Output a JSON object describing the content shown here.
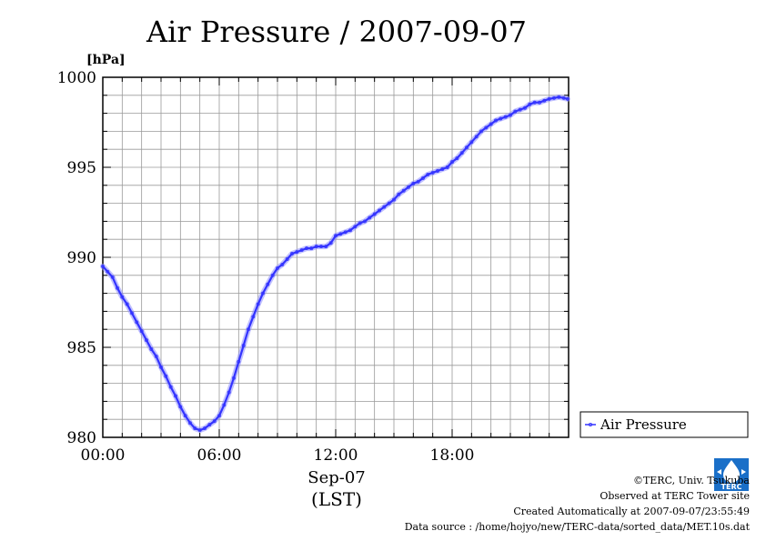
{
  "chart_data": {
    "type": "line",
    "title": "Air Pressure / 2007-09-07",
    "ylabel": "[hPa]",
    "xlabel": "(LST)",
    "date_label": "Sep-07",
    "x_unit": "hour (LST)",
    "xlim": [
      0,
      24
    ],
    "ylim": [
      980,
      1000
    ],
    "xticks": [
      0,
      6,
      12,
      18
    ],
    "xtick_labels": [
      "00:00",
      "06:00",
      "12:00",
      "18:00"
    ],
    "yticks": [
      980,
      985,
      990,
      995,
      1000
    ],
    "ytick_labels": [
      "980",
      "985",
      "990",
      "995",
      "1000"
    ],
    "grid": true,
    "legend_position": "right",
    "series": [
      {
        "name": "Air Pressure",
        "color": "#3333ff",
        "x": [
          0.0,
          0.25,
          0.5,
          0.75,
          1.0,
          1.25,
          1.5,
          1.75,
          2.0,
          2.25,
          2.5,
          2.75,
          3.0,
          3.25,
          3.5,
          3.75,
          4.0,
          4.25,
          4.5,
          4.75,
          5.0,
          5.25,
          5.5,
          5.75,
          6.0,
          6.25,
          6.5,
          6.75,
          7.0,
          7.25,
          7.5,
          7.75,
          8.0,
          8.25,
          8.5,
          8.75,
          9.0,
          9.25,
          9.5,
          9.75,
          10.0,
          10.25,
          10.5,
          10.75,
          11.0,
          11.25,
          11.5,
          11.75,
          12.0,
          12.25,
          12.5,
          12.75,
          13.0,
          13.25,
          13.5,
          13.75,
          14.0,
          14.25,
          14.5,
          14.75,
          15.0,
          15.25,
          15.5,
          15.75,
          16.0,
          16.25,
          16.5,
          16.75,
          17.0,
          17.25,
          17.5,
          17.75,
          18.0,
          18.25,
          18.5,
          18.75,
          19.0,
          19.25,
          19.5,
          19.75,
          20.0,
          20.25,
          20.5,
          20.75,
          21.0,
          21.25,
          21.5,
          21.75,
          22.0,
          22.25,
          22.5,
          22.75,
          23.0,
          23.25,
          23.5,
          23.75,
          23.95
        ],
        "y": [
          989.5,
          989.2,
          988.9,
          988.3,
          987.8,
          987.4,
          986.9,
          986.4,
          985.9,
          985.4,
          984.9,
          984.5,
          983.9,
          983.4,
          982.8,
          982.3,
          981.7,
          981.2,
          980.8,
          980.5,
          980.4,
          980.5,
          980.7,
          980.9,
          981.2,
          981.8,
          982.5,
          983.3,
          984.2,
          985.1,
          986.0,
          986.7,
          987.4,
          988.0,
          988.5,
          989.0,
          989.4,
          989.6,
          989.9,
          990.2,
          990.3,
          990.4,
          990.5,
          990.5,
          990.6,
          990.6,
          990.6,
          990.8,
          991.2,
          991.3,
          991.4,
          991.5,
          991.7,
          991.9,
          992.0,
          992.2,
          992.4,
          992.6,
          992.8,
          993.0,
          993.2,
          993.5,
          993.7,
          993.9,
          994.1,
          994.2,
          994.4,
          994.6,
          994.7,
          994.8,
          994.9,
          995.0,
          995.3,
          995.5,
          995.8,
          996.1,
          996.4,
          996.7,
          997.0,
          997.2,
          997.4,
          997.6,
          997.7,
          997.8,
          997.9,
          998.1,
          998.2,
          998.3,
          998.5,
          998.6,
          998.6,
          998.7,
          998.8,
          998.85,
          998.9,
          998.85,
          998.8
        ]
      }
    ]
  },
  "footer": {
    "copyright": "©TERC, Univ. Tsukuba",
    "observed": "Observed at TERC Tower site",
    "created": "Created Automatically at 2007-09-07/23:55:49",
    "source": "Data source : /home/hojyo/new/TERC-data/sorted_data/MET.10s.dat",
    "logo_text": "TERC"
  }
}
